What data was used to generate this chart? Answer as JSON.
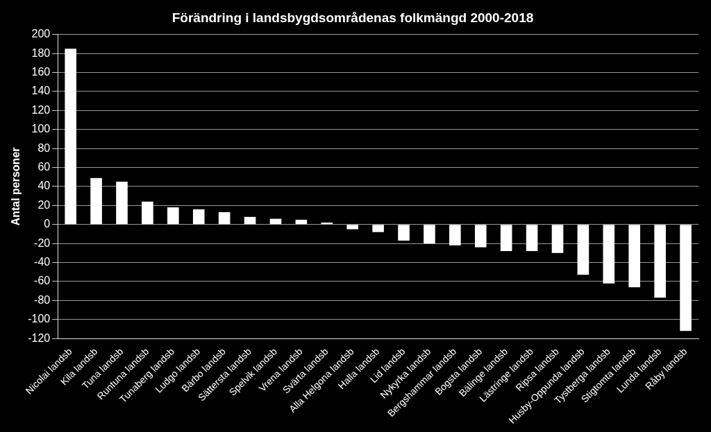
{
  "chart_data": {
    "type": "bar",
    "title": "Förändring i landsbygdsområdenas folkmängd 2000-2018",
    "ylabel": "Antal personer",
    "categories": [
      "Nicolai landsb",
      "Kila landsb",
      "Tuna landsb",
      "Runtuna landsb",
      "Tunaberg landsb",
      "Ludgo landsb",
      "Bärbo landsb",
      "Sättersta landsb",
      "Spelvik landsb",
      "Vrena landsb",
      "Svärta landsb",
      "Alla Helgona landsb",
      "Halla landsb",
      "Lid landsb",
      "Nykyrka landsb",
      "Bergshammar landsb",
      "Bogsta landsb",
      "Bälinge landsb",
      "Lästringe landsb",
      "Ripsa landsb",
      "Husby-Oppunda landsb",
      "Tystberga landsb",
      "Stigtomta landsb",
      "Lunda landsb",
      "Råby landsb"
    ],
    "values": [
      185,
      49,
      45,
      24,
      18,
      16,
      13,
      8,
      6,
      5,
      2,
      -5,
      -8,
      -17,
      -20,
      -22,
      -24,
      -28,
      -28,
      -30,
      -53,
      -62,
      -66,
      -77,
      -112
    ],
    "color": "#ffffff",
    "ylim": [
      -120,
      200
    ],
    "yticks": [
      -120,
      -100,
      -80,
      -60,
      -40,
      -20,
      0,
      20,
      40,
      60,
      80,
      100,
      120,
      140,
      160,
      180,
      200
    ],
    "grid": "y",
    "legend": false
  }
}
